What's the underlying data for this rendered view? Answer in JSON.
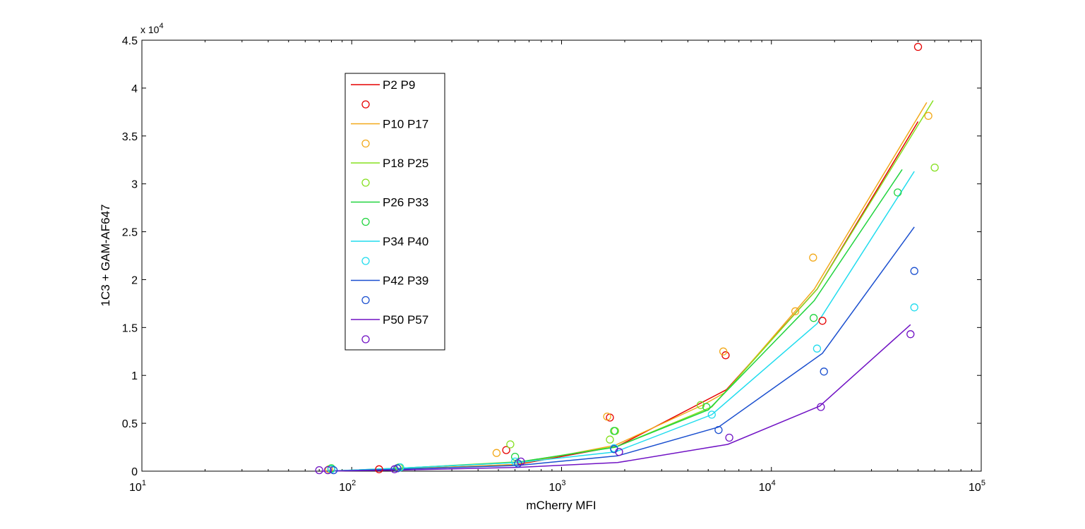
{
  "chart_data": {
    "type": "scatter",
    "xlabel": "mCherry MFI",
    "ylabel": "1C3 + GAM-AF647",
    "x_scale": "log",
    "xlim": [
      10,
      100000
    ],
    "ylim": [
      0,
      45000
    ],
    "y_exponent_label": "x 10",
    "y_exponent_power": "4",
    "x_ticks": [
      {
        "value": 10,
        "base": "10",
        "exp": "1"
      },
      {
        "value": 100,
        "base": "10",
        "exp": "2"
      },
      {
        "value": 1000,
        "base": "10",
        "exp": "3"
      },
      {
        "value": 10000,
        "base": "10",
        "exp": "4"
      },
      {
        "value": 100000,
        "base": "10",
        "exp": "5"
      }
    ],
    "y_ticks": [
      {
        "value": 0,
        "label": "0"
      },
      {
        "value": 5000,
        "label": "0.5"
      },
      {
        "value": 10000,
        "label": "1"
      },
      {
        "value": 15000,
        "label": "1.5"
      },
      {
        "value": 20000,
        "label": "2"
      },
      {
        "value": 25000,
        "label": "2.5"
      },
      {
        "value": 30000,
        "label": "3"
      },
      {
        "value": 35000,
        "label": "3.5"
      },
      {
        "value": 40000,
        "label": "4"
      },
      {
        "value": 45000,
        "label": "4.5"
      }
    ],
    "grid": false,
    "legend_position": "upper-left",
    "series": [
      {
        "name": "P2 P9",
        "color": "#e60000",
        "line": [
          [
            75,
            0
          ],
          [
            165,
            200
          ],
          [
            620,
            700
          ],
          [
            1850,
            2600
          ],
          [
            6100,
            8500
          ],
          [
            16500,
            19000
          ],
          [
            50000,
            36500
          ]
        ],
        "points": [
          [
            80,
            200
          ],
          [
            135,
            200
          ],
          [
            165,
            300
          ],
          [
            545,
            2200
          ],
          [
            1700,
            5600
          ],
          [
            6050,
            12100
          ],
          [
            17500,
            15700
          ],
          [
            50000,
            44300
          ]
        ]
      },
      {
        "name": "P10 P17",
        "color": "#f2a91a",
        "line": [
          [
            75,
            0
          ],
          [
            160,
            200
          ],
          [
            600,
            700
          ],
          [
            1800,
            2700
          ],
          [
            4800,
            7000
          ],
          [
            6000,
            8200
          ],
          [
            16000,
            19000
          ],
          [
            55000,
            38500
          ]
        ],
        "points": [
          [
            78,
            200
          ],
          [
            165,
            300
          ],
          [
            490,
            1900
          ],
          [
            1650,
            5700
          ],
          [
            5900,
            12500
          ],
          [
            13000,
            16700
          ],
          [
            15800,
            22300
          ],
          [
            56000,
            37100
          ]
        ]
      },
      {
        "name": "P18 P25",
        "color": "#85e01f",
        "line": [
          [
            80,
            0
          ],
          [
            170,
            300
          ],
          [
            650,
            1000
          ],
          [
            1850,
            2600
          ],
          [
            5200,
            6700
          ],
          [
            16500,
            19000
          ],
          [
            59000,
            38700
          ]
        ],
        "points": [
          [
            80,
            200
          ],
          [
            168,
            400
          ],
          [
            570,
            2800
          ],
          [
            1700,
            3300
          ],
          [
            1800,
            4200
          ],
          [
            4600,
            6900
          ],
          [
            60000,
            31700
          ]
        ]
      },
      {
        "name": "P26 P33",
        "color": "#21d43f",
        "line": [
          [
            75,
            0
          ],
          [
            165,
            300
          ],
          [
            600,
            900
          ],
          [
            1800,
            2500
          ],
          [
            5000,
            6400
          ],
          [
            16000,
            17800
          ],
          [
            42000,
            31500
          ]
        ],
        "points": [
          [
            80,
            300
          ],
          [
            170,
            400
          ],
          [
            600,
            1500
          ],
          [
            1780,
            4200
          ],
          [
            4900,
            6700
          ],
          [
            15900,
            16000
          ],
          [
            40000,
            29100
          ]
        ]
      },
      {
        "name": "P34 P40",
        "color": "#20dcee",
        "line": [
          [
            75,
            0
          ],
          [
            165,
            300
          ],
          [
            620,
            900
          ],
          [
            1800,
            2000
          ],
          [
            5200,
            5900
          ],
          [
            16500,
            15400
          ],
          [
            48000,
            31300
          ]
        ],
        "points": [
          [
            80,
            200
          ],
          [
            170,
            400
          ],
          [
            600,
            1000
          ],
          [
            1780,
            2400
          ],
          [
            5200,
            5900
          ],
          [
            16500,
            12800
          ],
          [
            48000,
            17100
          ]
        ]
      },
      {
        "name": "P42 P39",
        "color": "#1a4fcf",
        "line": [
          [
            75,
            0
          ],
          [
            165,
            200
          ],
          [
            620,
            600
          ],
          [
            1850,
            1600
          ],
          [
            5600,
            4600
          ],
          [
            17500,
            12300
          ],
          [
            48000,
            25500
          ]
        ],
        "points": [
          [
            82,
            100
          ],
          [
            165,
            300
          ],
          [
            620,
            800
          ],
          [
            1780,
            2300
          ],
          [
            5600,
            4300
          ],
          [
            17800,
            10400
          ],
          [
            48000,
            20900
          ]
        ]
      },
      {
        "name": "P50 P57",
        "color": "#7012c4",
        "line": [
          [
            72,
            0
          ],
          [
            160,
            100
          ],
          [
            620,
            400
          ],
          [
            1850,
            900
          ],
          [
            6200,
            2800
          ],
          [
            17000,
            6800
          ],
          [
            46000,
            15300
          ]
        ],
        "points": [
          [
            70,
            100
          ],
          [
            77,
            100
          ],
          [
            160,
            200
          ],
          [
            640,
            1000
          ],
          [
            1880,
            2000
          ],
          [
            6300,
            3500
          ],
          [
            17200,
            6700
          ],
          [
            46000,
            14300
          ]
        ]
      }
    ]
  }
}
